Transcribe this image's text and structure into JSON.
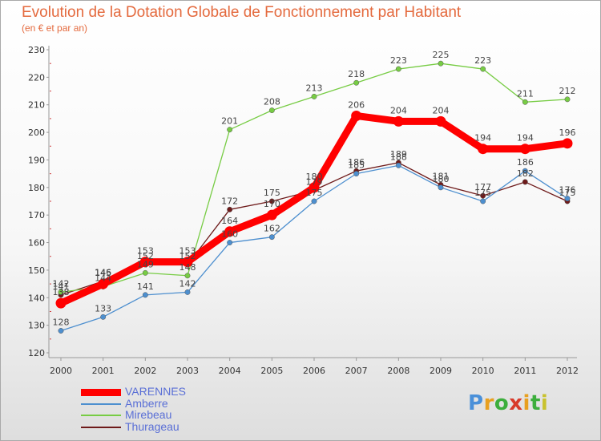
{
  "header": {
    "title": "Evolution de la Dotation Globale de Fonctionnement par Habitant",
    "subtitle": "(en € et par an)"
  },
  "logo": {
    "letters": [
      "P",
      "r",
      "o",
      "x",
      "i",
      "t",
      "i"
    ],
    "colors": [
      "#4a90d9",
      "#e8a020",
      "#3cae3c",
      "#d83a2a",
      "#e8a020",
      "#3cae3c",
      "#c9c22e"
    ]
  },
  "chart_data": {
    "type": "line",
    "x": [
      "2000",
      "2001",
      "2002",
      "2003",
      "2004",
      "2005",
      "2006",
      "2007",
      "2008",
      "2009",
      "2010",
      "2011",
      "2012"
    ],
    "ylim": [
      120,
      230
    ],
    "yticks": [
      120,
      130,
      140,
      150,
      160,
      170,
      180,
      190,
      200,
      210,
      220,
      230
    ],
    "grid": false,
    "legend_position": "bottom-left",
    "series": [
      {
        "name": "VARENNES",
        "color": "#ff0000",
        "values": [
          138,
          145,
          153,
          153,
          164,
          170,
          180,
          206,
          204,
          204,
          194,
          194,
          196
        ]
      },
      {
        "name": "Amberre",
        "color": "#4d8fcf",
        "values": [
          128,
          133,
          141,
          142,
          160,
          162,
          175,
          185,
          188,
          180,
          175,
          186,
          176
        ]
      },
      {
        "name": "Mirebeau",
        "color": "#77cc44",
        "values": [
          142,
          144,
          149,
          148,
          201,
          208,
          213,
          218,
          223,
          225,
          223,
          211,
          212
        ]
      },
      {
        "name": "Thurageau",
        "color": "#6e1a1a",
        "values": [
          141,
          146,
          152,
          152,
          172,
          175,
          179,
          186,
          189,
          181,
          177,
          182,
          175
        ]
      }
    ]
  }
}
